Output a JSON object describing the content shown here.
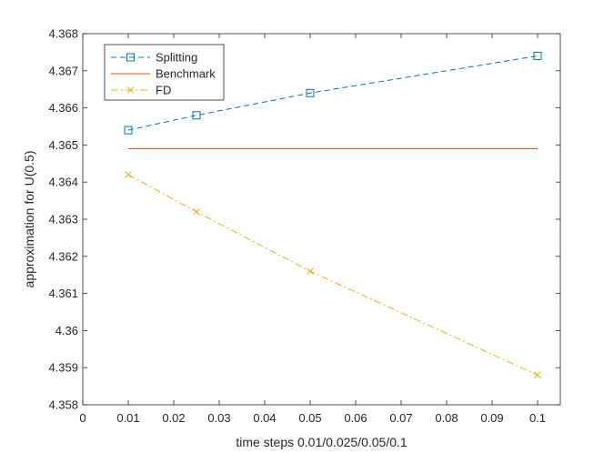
{
  "chart_data": {
    "type": "line",
    "title": "",
    "xlabel": "time steps 0.01/0.025/0.05/0.1",
    "ylabel": "approximation for U(0.5)",
    "xlim": [
      0,
      0.105
    ],
    "ylim": [
      4.358,
      4.368
    ],
    "xticks": [
      "0",
      "0.01",
      "0.02",
      "0.03",
      "0.04",
      "0.05",
      "0.06",
      "0.07",
      "0.08",
      "0.09",
      "0.1"
    ],
    "yticks": [
      "4.358",
      "4.359",
      "4.36",
      "4.361",
      "4.362",
      "4.363",
      "4.364",
      "4.365",
      "4.366",
      "4.367",
      "4.368"
    ],
    "grid": false,
    "legend_position": "top-left",
    "series": [
      {
        "name": "Splitting",
        "color": "#0072BD",
        "line": "dashed",
        "marker": "square",
        "x": [
          0.01,
          0.025,
          0.05,
          0.1
        ],
        "y": [
          4.3654,
          4.3658,
          4.3664,
          4.3674
        ]
      },
      {
        "name": "Benchmark",
        "color": "#D95319",
        "line": "solid",
        "marker": "none",
        "x": [
          0.01,
          0.1
        ],
        "y": [
          4.3649,
          4.3649
        ]
      },
      {
        "name": "FD",
        "color": "#EDB120",
        "line": "dashdot",
        "marker": "x",
        "x": [
          0.01,
          0.025,
          0.05,
          0.1
        ],
        "y": [
          4.3642,
          4.3632,
          4.3616,
          4.3588
        ]
      }
    ]
  }
}
